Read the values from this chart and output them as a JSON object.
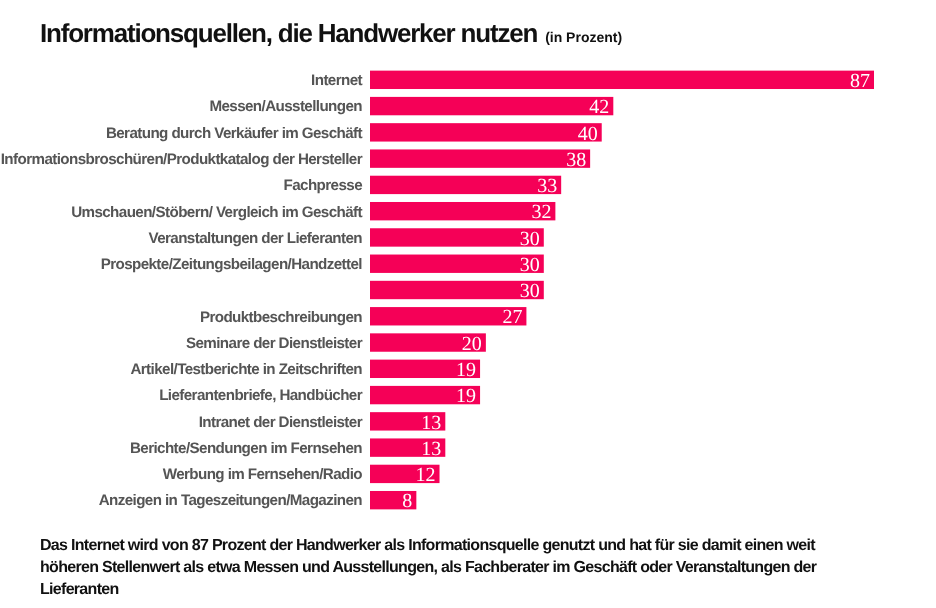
{
  "chart_data": {
    "type": "bar",
    "orientation": "horizontal",
    "title": "Informationsquellen, die Handwerker nutzen",
    "subtitle": "(in Prozent)",
    "categories": [
      "Internet",
      "Messen/Ausstellungen",
      "Beratung durch Verkäufer im Geschäft",
      "Informationsbroschüren/Produktkatalog der Hersteller",
      "Fachpresse",
      "Umschauen/Stöbern/ Vergleich im Geschäft",
      "Veranstaltungen der Lieferanten",
      "Prospekte/Zeitungsbeilagen/Handzettel",
      null,
      "Produktbeschreibungen",
      "Seminare der Dienstleister",
      "Artikel/Testberichte in Zeitschriften",
      "Lieferantenbriefe, Handbücher",
      "Intranet der Dienstleister",
      "Berichte/Sendungen im Fernsehen",
      "Werbung im Fernsehen/Radio",
      "Anzeigen in Tageszeitungen/Magazinen"
    ],
    "values": [
      87,
      42,
      40,
      38,
      33,
      32,
      30,
      30,
      30,
      27,
      20,
      19,
      19,
      13,
      13,
      12,
      8
    ],
    "color": "#f50057",
    "data_labels": true,
    "annotations": [
      "Das Internet wird von 87 Prozent der Handwerker als Informationsquelle genutzt und hat für sie damit einen weit höheren Stellenwert als etwa Messen und Ausstellungen, als Fachberater im Geschäft oder Veranstaltungen der Lieferanten"
    ]
  }
}
